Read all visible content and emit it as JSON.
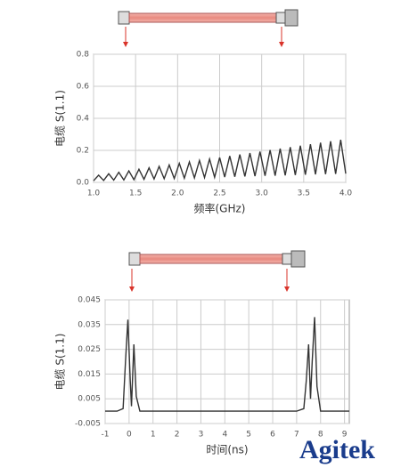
{
  "chart_data": [
    {
      "type": "line",
      "xlabel": "频率(GHz)",
      "ylabel": "电缆 S(1.1)",
      "color": "#333333",
      "grid": true,
      "x": [
        1,
        1.06,
        1.12,
        1.18,
        1.24,
        1.3,
        1.36,
        1.42,
        1.48,
        1.54,
        1.6,
        1.66,
        1.72,
        1.78,
        1.84,
        1.9,
        1.96,
        2.02,
        2.08,
        2.14,
        2.2,
        2.26,
        2.32,
        2.38,
        2.44,
        2.5,
        2.56,
        2.62,
        2.68,
        2.74,
        2.8,
        2.86,
        2.92,
        2.98,
        3.04,
        3.1,
        3.16,
        3.22,
        3.28,
        3.34,
        3.4,
        3.46,
        3.52,
        3.58,
        3.64,
        3.7,
        3.76,
        3.82,
        3.88,
        3.94,
        4
      ],
      "values": [
        0.01,
        0.045,
        0.012,
        0.054,
        0.014,
        0.063,
        0.015,
        0.072,
        0.017,
        0.082,
        0.019,
        0.091,
        0.021,
        0.1,
        0.023,
        0.109,
        0.024,
        0.119,
        0.026,
        0.128,
        0.028,
        0.137,
        0.03,
        0.146,
        0.032,
        0.155,
        0.033,
        0.165,
        0.035,
        0.174,
        0.037,
        0.183,
        0.039,
        0.192,
        0.041,
        0.202,
        0.042,
        0.211,
        0.044,
        0.22,
        0.046,
        0.229,
        0.048,
        0.238,
        0.05,
        0.248,
        0.051,
        0.257,
        0.053,
        0.266,
        0.055
      ],
      "xlim": [
        1,
        4
      ],
      "ylim": [
        0,
        0.8
      ],
      "xticks": [
        {
          "value": 1,
          "label": "1.0"
        },
        1.5,
        {
          "value": 2,
          "label": "2.0"
        },
        2.5,
        {
          "value": 3,
          "label": "3.0"
        },
        3.5,
        {
          "value": 4,
          "label": "4.0"
        }
      ],
      "yticks": [
        {
          "value": 0,
          "label": "0.0"
        },
        0.2,
        0.4,
        0.6,
        0.8
      ]
    },
    {
      "type": "line",
      "xlabel": "时间(ns)",
      "ylabel": "电缆 S(1.1)",
      "color": "#333333",
      "grid": true,
      "x": [
        -1,
        -0.5,
        -0.25,
        -0.15,
        -0.05,
        0.05,
        0.1,
        0.2,
        0.3,
        0.45,
        1,
        2,
        3,
        4,
        5,
        6,
        7,
        7.3,
        7.4,
        7.5,
        7.58,
        7.65,
        7.75,
        7.85,
        8,
        8.5,
        9,
        9.2
      ],
      "values": [
        0,
        0,
        0.001,
        0.02,
        0.037,
        0.012,
        0.002,
        0.027,
        0.006,
        0,
        0,
        0,
        0,
        0,
        0,
        0,
        0,
        0.001,
        0.012,
        0.027,
        0.005,
        0.02,
        0.038,
        0.01,
        0,
        0,
        0,
        0
      ],
      "xlim": [
        -1,
        9.2
      ],
      "ylim": [
        -0.005,
        0.045
      ],
      "xticks": [
        -1,
        0,
        1,
        2,
        3,
        4,
        5,
        6,
        7,
        8,
        9
      ],
      "yticks": [
        -0.005,
        0.005,
        0.015,
        0.025,
        0.035,
        0.045
      ]
    }
  ],
  "logo": "Agitek"
}
